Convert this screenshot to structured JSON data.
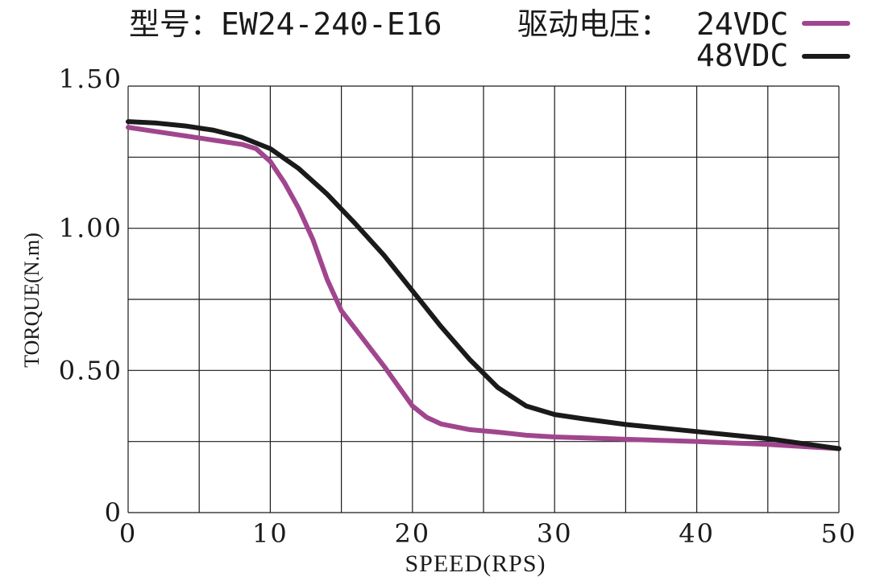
{
  "chart_data": {
    "type": "line",
    "title_model_label": "型号：EW24-240-E16",
    "title_voltage_label": "驱动电压：",
    "xlabel": "SPEED(RPS)",
    "ylabel": "TORQUE(N.m)",
    "xlim": [
      0,
      50
    ],
    "ylim": [
      0,
      1.5
    ],
    "x_ticks": [
      0,
      10,
      20,
      30,
      40,
      50
    ],
    "x_tick_labels": [
      "0",
      "10",
      "20",
      "30",
      "40",
      "50"
    ],
    "y_ticks": [
      0,
      0.5,
      1.0,
      1.5
    ],
    "y_tick_labels": [
      "0",
      "0.50",
      "1.00",
      "1.50"
    ],
    "x_grid": [
      0,
      5,
      10,
      15,
      20,
      25,
      30,
      35,
      40,
      45,
      50
    ],
    "y_grid": [
      0,
      0.25,
      0.5,
      0.75,
      1.0,
      1.25,
      1.5
    ],
    "grid": true,
    "legend_position": "top-right",
    "series": [
      {
        "name": "24VDC",
        "color": "#a0468e",
        "x": [
          0,
          2,
          4,
          6,
          8,
          9,
          10,
          11,
          12,
          13,
          14,
          15,
          16,
          17,
          18,
          19,
          20,
          21,
          22,
          24,
          26,
          28,
          30,
          35,
          40,
          45,
          50
        ],
        "y": [
          1.355,
          1.34,
          1.325,
          1.31,
          1.295,
          1.28,
          1.235,
          1.16,
          1.07,
          0.96,
          0.82,
          0.71,
          0.645,
          0.58,
          0.515,
          0.445,
          0.375,
          0.335,
          0.312,
          0.292,
          0.283,
          0.272,
          0.266,
          0.258,
          0.25,
          0.24,
          0.225
        ]
      },
      {
        "name": "48VDC",
        "color": "#1a1a1a",
        "x": [
          0,
          2,
          4,
          6,
          8,
          10,
          12,
          14,
          16,
          18,
          20,
          22,
          24,
          26,
          28,
          30,
          32,
          35,
          40,
          45,
          50
        ],
        "y": [
          1.375,
          1.37,
          1.36,
          1.345,
          1.32,
          1.28,
          1.21,
          1.12,
          1.015,
          0.905,
          0.78,
          0.655,
          0.54,
          0.44,
          0.375,
          0.345,
          0.33,
          0.31,
          0.285,
          0.26,
          0.225
        ]
      }
    ]
  }
}
